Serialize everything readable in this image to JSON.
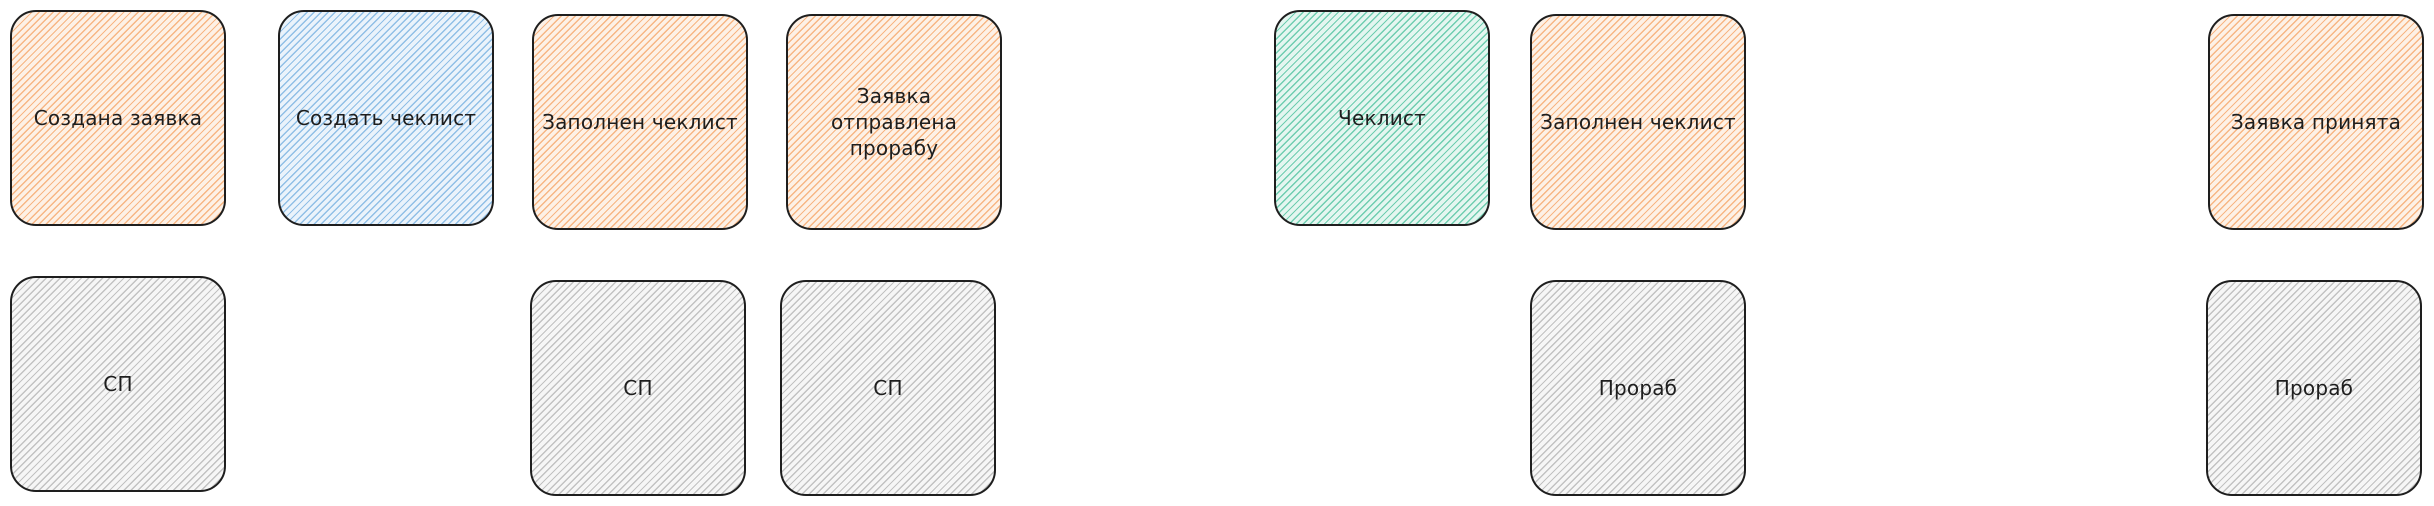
{
  "diagram": {
    "nodes": [
      {
        "id": "n1",
        "label": "Создана заявка",
        "fill": "orange"
      },
      {
        "id": "n2",
        "label": "Создать чеклист",
        "fill": "blue"
      },
      {
        "id": "n3",
        "label": "Заполнен чеклист",
        "fill": "orange"
      },
      {
        "id": "n4",
        "label": "Заявка отправлена прорабу",
        "fill": "orange"
      },
      {
        "id": "n5",
        "label": "Чеклист",
        "fill": "teal"
      },
      {
        "id": "n6",
        "label": "Заполнен чеклист",
        "fill": "orange"
      },
      {
        "id": "n7",
        "label": "Заявка принята",
        "fill": "orange"
      },
      {
        "id": "n8",
        "label": "СП",
        "fill": "gray"
      },
      {
        "id": "n9",
        "label": "СП",
        "fill": "gray"
      },
      {
        "id": "n10",
        "label": "СП",
        "fill": "gray"
      },
      {
        "id": "n11",
        "label": "Прораб",
        "fill": "gray"
      },
      {
        "id": "n12",
        "label": "Прораб",
        "fill": "gray"
      }
    ]
  },
  "colors": {
    "orange": "#f7b684",
    "blue": "#90bfe6",
    "teal": "#6fcdb0",
    "gray": "#c2c2c2",
    "stroke": "#1e1e1e",
    "background": "#ffffff"
  }
}
